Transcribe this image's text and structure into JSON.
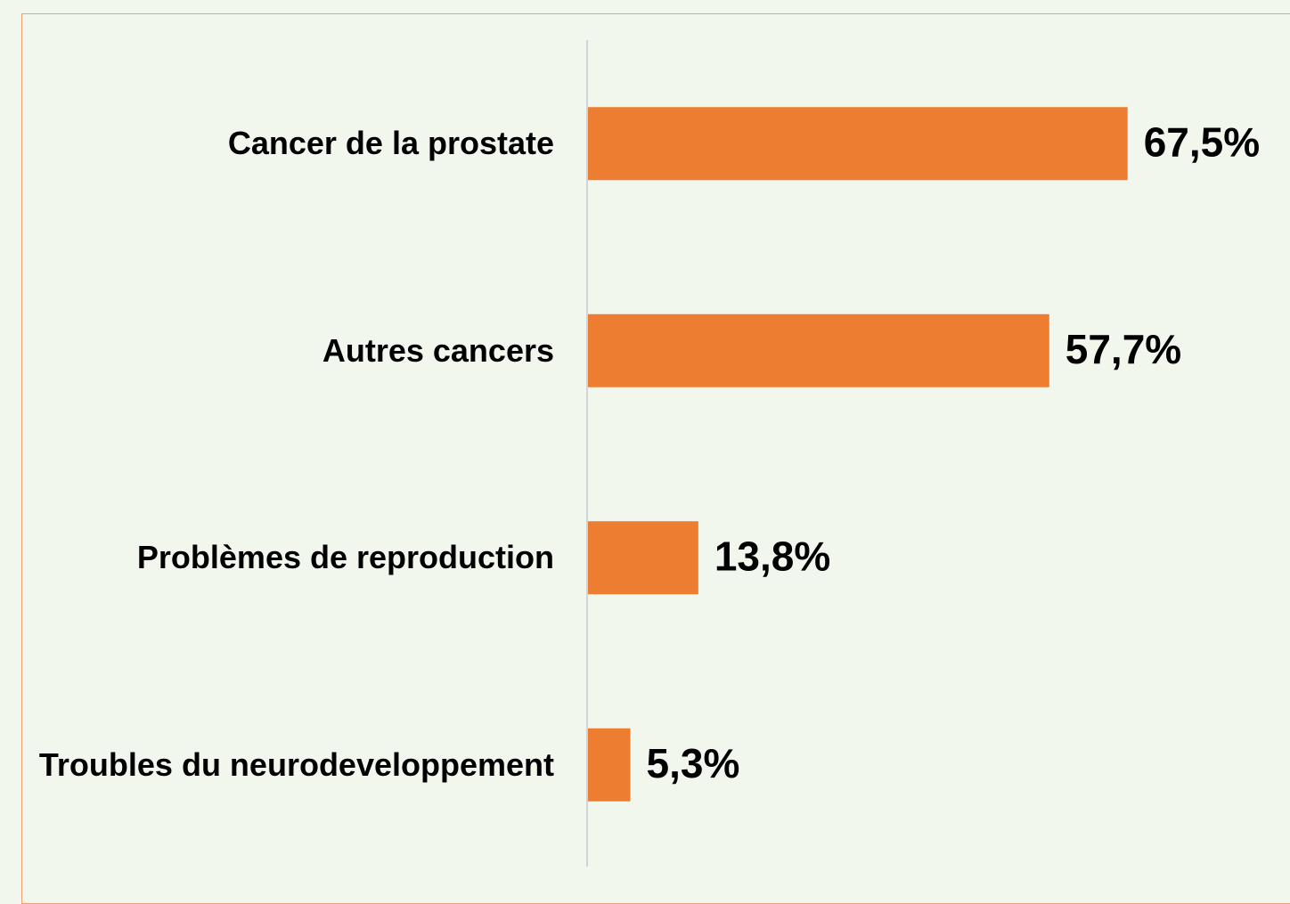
{
  "chart_data": {
    "type": "bar",
    "orientation": "horizontal",
    "categories": [
      "Cancer de la prostate",
      "Autres cancers",
      "Problèmes de reproduction",
      "Troubles du neurodeveloppement"
    ],
    "values": [
      67.5,
      57.7,
      13.8,
      5.3
    ],
    "value_labels": [
      "67,5%",
      "57,7%",
      "13,8%",
      "5,3%"
    ],
    "color": "#ed7d31",
    "xlim": [
      0,
      75
    ]
  }
}
